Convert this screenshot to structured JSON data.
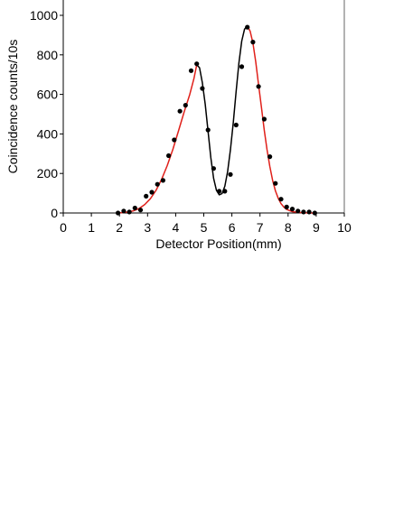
{
  "chart_data": {
    "type": "scatter",
    "title": "",
    "xlabel": "Detector Position(mm)",
    "ylabel": "Coincidence counts/10s",
    "xlim": [
      0,
      10
    ],
    "ylim": [
      0,
      1000
    ],
    "x_ticks": [
      "0",
      "1",
      "2",
      "3",
      "4",
      "5",
      "6",
      "7",
      "8",
      "9",
      "10"
    ],
    "y_ticks": [
      "0",
      "200",
      "400",
      "600",
      "800",
      "1000"
    ],
    "grid": false,
    "colors": {
      "points": "#000000",
      "fit_wings": "#e0201a",
      "fit_center": "#000000",
      "axis": "#000000"
    },
    "series": [
      {
        "type": "scatter",
        "x": [
          1.95,
          2.15,
          2.35,
          2.55,
          2.75,
          2.95,
          3.15,
          3.35,
          3.55,
          3.75,
          3.95,
          4.15,
          4.35,
          4.55,
          4.75,
          4.95,
          5.15,
          5.35,
          5.55,
          5.75,
          5.95,
          6.15,
          6.35,
          6.55,
          6.75,
          6.95,
          7.15,
          7.35,
          7.55,
          7.75,
          7.95,
          8.15,
          8.35,
          8.55,
          8.75,
          8.95
        ],
        "y": [
          0,
          10,
          5,
          25,
          15,
          85,
          105,
          145,
          165,
          290,
          370,
          515,
          545,
          720,
          755,
          630,
          420,
          225,
          110,
          110,
          195,
          445,
          740,
          940,
          865,
          640,
          475,
          285,
          150,
          70,
          30,
          20,
          10,
          5,
          5,
          0
        ]
      },
      {
        "type": "line",
        "segments": [
          {
            "color": "#e0201a",
            "x": [
              1.9,
              2.1,
              2.3,
              2.5,
              2.7,
              2.9,
              3.1,
              3.3,
              3.5,
              3.7,
              3.9,
              4.1,
              4.3,
              4.5,
              4.65,
              4.75
            ],
            "y": [
              0,
              2,
              5,
              11,
              23,
              43,
              72,
              114,
              170,
              240,
              322,
              415,
              510,
              600,
              680,
              750
            ]
          },
          {
            "color": "#000000",
            "x": [
              4.75,
              4.85,
              4.95,
              5.05,
              5.15,
              5.25,
              5.35,
              5.45,
              5.55,
              5.65,
              5.75,
              5.85,
              5.95,
              6.05,
              6.15,
              6.25,
              6.35,
              6.45,
              6.55
            ],
            "y": [
              750,
              735,
              660,
              550,
              415,
              280,
              175,
              115,
              92,
              98,
              135,
              210,
              320,
              460,
              615,
              760,
              870,
              930,
              945
            ]
          },
          {
            "color": "#e0201a",
            "x": [
              6.55,
              6.65,
              6.75,
              6.85,
              6.95,
              7.05,
              7.15,
              7.25,
              7.35,
              7.45,
              7.55,
              7.65,
              7.75,
              7.85,
              7.95,
              8.15,
              8.35,
              8.55,
              8.75,
              8.95
            ],
            "y": [
              945,
              920,
              860,
              765,
              650,
              535,
              420,
              320,
              235,
              165,
              112,
              74,
              47,
              30,
              18,
              7,
              3,
              1,
              0,
              0
            ]
          }
        ]
      }
    ]
  }
}
